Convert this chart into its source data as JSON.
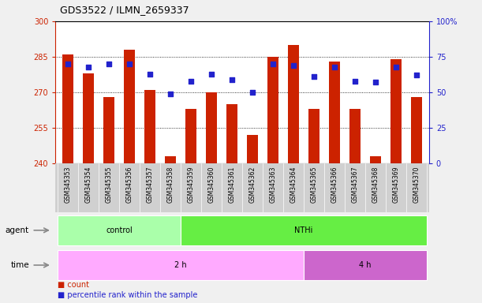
{
  "title": "GDS3522 / ILMN_2659337",
  "samples": [
    "GSM345353",
    "GSM345354",
    "GSM345355",
    "GSM345356",
    "GSM345357",
    "GSM345358",
    "GSM345359",
    "GSM345360",
    "GSM345361",
    "GSM345362",
    "GSM345363",
    "GSM345364",
    "GSM345365",
    "GSM345366",
    "GSM345367",
    "GSM345368",
    "GSM345369",
    "GSM345370"
  ],
  "counts": [
    286,
    278,
    268,
    288,
    271,
    243,
    263,
    270,
    265,
    252,
    285,
    290,
    263,
    283,
    263,
    243,
    284,
    268
  ],
  "percentile_ranks": [
    70,
    68,
    70,
    70,
    63,
    49,
    58,
    63,
    59,
    50,
    70,
    69,
    61,
    68,
    58,
    57,
    68,
    62
  ],
  "ylim_left": [
    240,
    300
  ],
  "ylim_right": [
    0,
    100
  ],
  "yticks_left": [
    240,
    255,
    270,
    285,
    300
  ],
  "yticks_right": [
    0,
    25,
    50,
    75,
    100
  ],
  "bar_color": "#CC2200",
  "dot_color": "#2222CC",
  "grid_color": "#000000",
  "plot_bg": "#FFFFFF",
  "fig_bg": "#F0F0F0",
  "xtick_area_bg": "#D0D0D0",
  "agent_groups": [
    {
      "label": "control",
      "start": 0,
      "end": 6,
      "color": "#AAFFAA"
    },
    {
      "label": "NTHi",
      "start": 6,
      "end": 18,
      "color": "#66EE44"
    }
  ],
  "time_groups": [
    {
      "label": "2 h",
      "start": 0,
      "end": 12,
      "color": "#FFAAFF"
    },
    {
      "label": "4 h",
      "start": 12,
      "end": 18,
      "color": "#CC66CC"
    }
  ],
  "left_axis_color": "#CC2200",
  "right_axis_color": "#2222CC",
  "legend_count_color": "#CC2200",
  "legend_pct_color": "#2222CC",
  "legend_count_label": "count",
  "legend_pct_label": "percentile rank within the sample"
}
